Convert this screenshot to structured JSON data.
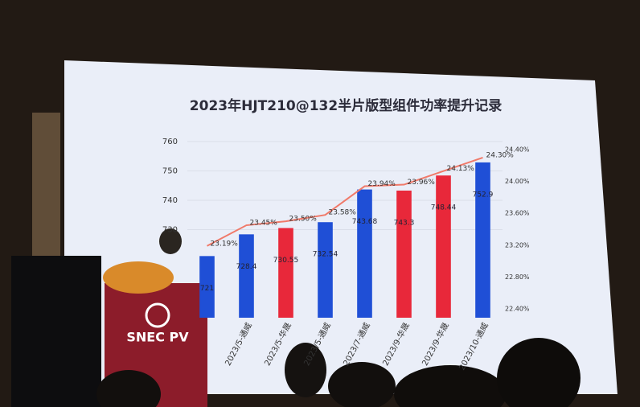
{
  "chart_data": {
    "type": "bar-line",
    "title": "2023年HJT210@132半片版型组件功率提升记录",
    "categories": [
      null,
      "2023/5-通威",
      "2023/5-华晟",
      "2023/5-通威",
      "2023/7-通威",
      "2023/9-华晟",
      "2023/9-华晟",
      "2023/10-通威"
    ],
    "series": [
      {
        "type": "bar",
        "colors": [
          "#1f4fd6",
          "#1f4fd6",
          "#e8283a",
          "#1f4fd6",
          "#1f4fd6",
          "#e8283a",
          "#e8283a",
          "#1f4fd6"
        ],
        "values": [
          721,
          728.4,
          730.55,
          732.54,
          743.68,
          743.3,
          748.44,
          752.9
        ]
      },
      {
        "type": "line",
        "axis": "y2",
        "color": "#f07a6a",
        "values": [
          23.19,
          23.45,
          23.5,
          23.58,
          23.94,
          23.96,
          24.13,
          24.3
        ],
        "value_labels": [
          "23.19%",
          "23.45%",
          "23.50%",
          "23.58%",
          "23.94%",
          "23.96%",
          "24.13%",
          "24.30%"
        ]
      }
    ],
    "ylim": [
      700,
      760
    ],
    "yticks": [
      730,
      740,
      750,
      760
    ],
    "y2lim": [
      22.4,
      24.4
    ],
    "y2ticks": [
      {
        "value": 22.4,
        "label": "22.40%"
      },
      {
        "value": 22.8,
        "label": "22.80%"
      },
      {
        "value": 23.2,
        "label": "23.20%"
      },
      {
        "value": 23.6,
        "label": "23.60%"
      },
      {
        "value": 24.0,
        "label": "24.00%"
      },
      {
        "value": 24.4,
        "label": "24.40%"
      }
    ],
    "grid": true
  },
  "signage": "SNEC PV"
}
